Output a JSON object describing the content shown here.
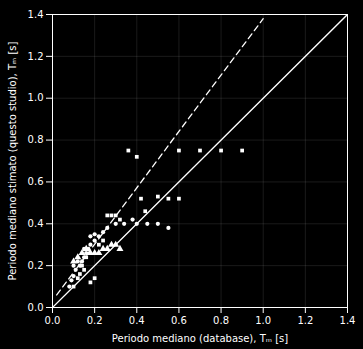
{
  "chart_data": {
    "type": "scatter",
    "xlabel": "Periodo mediano (database), Tₘ [s]",
    "ylabel": "Periodo mediano stimato (questo studio), Tₘ [s]",
    "xlim": [
      0,
      1.4
    ],
    "ylim": [
      0,
      1.4
    ],
    "xticks": [
      {
        "value": 0,
        "label": "0.0"
      },
      0.2,
      0.4,
      0.6,
      0.8,
      {
        "value": 1.0,
        "label": "1.0"
      },
      1.2,
      1.4
    ],
    "yticks": [
      {
        "value": 0,
        "label": "0.0"
      },
      0.2,
      0.4,
      0.6,
      0.8,
      {
        "value": 1.0,
        "label": "1.0"
      },
      1.2,
      1.4
    ],
    "grid": true,
    "series": [
      {
        "type": "scatter",
        "marker": "circle",
        "color": "#ffffff",
        "x": [
          0.08,
          0.09,
          0.1,
          0.1,
          0.11,
          0.12,
          0.13,
          0.14,
          0.15,
          0.15,
          0.16,
          0.17,
          0.18,
          0.18,
          0.2,
          0.2,
          0.22,
          0.24,
          0.26,
          0.3,
          0.34,
          0.38,
          0.4,
          0.45,
          0.5,
          0.55
        ],
        "values": [
          0.1,
          0.13,
          0.15,
          0.2,
          0.18,
          0.22,
          0.2,
          0.22,
          0.24,
          0.28,
          0.26,
          0.28,
          0.3,
          0.34,
          0.32,
          0.35,
          0.34,
          0.36,
          0.38,
          0.4,
          0.4,
          0.42,
          0.4,
          0.4,
          0.4,
          0.38
        ]
      },
      {
        "type": "scatter",
        "marker": "square",
        "color": "#ffffff",
        "x": [
          0.1,
          0.12,
          0.13,
          0.14,
          0.15,
          0.16,
          0.18,
          0.2,
          0.22,
          0.24,
          0.26,
          0.28,
          0.3,
          0.32,
          0.36,
          0.4,
          0.42,
          0.44,
          0.5,
          0.55,
          0.6,
          0.7,
          0.8,
          0.9,
          0.6
        ],
        "values": [
          0.1,
          0.14,
          0.16,
          0.2,
          0.18,
          0.24,
          0.12,
          0.14,
          0.3,
          0.32,
          0.44,
          0.44,
          0.44,
          0.42,
          0.75,
          0.72,
          0.52,
          0.46,
          0.53,
          0.52,
          0.52,
          0.75,
          0.75,
          0.75,
          0.75
        ]
      },
      {
        "type": "scatter",
        "marker": "triangle",
        "color": "#ffffff",
        "x": [
          0.1,
          0.12,
          0.14,
          0.16,
          0.18,
          0.2,
          0.22,
          0.24,
          0.26,
          0.28,
          0.3,
          0.32
        ],
        "values": [
          0.22,
          0.24,
          0.26,
          0.28,
          0.26,
          0.26,
          0.26,
          0.28,
          0.28,
          0.3,
          0.3,
          0.28
        ]
      },
      {
        "type": "line",
        "line_style": "solid",
        "color": "#ffffff",
        "x": [
          0,
          1.4
        ],
        "values": [
          0,
          1.4
        ]
      },
      {
        "type": "line",
        "line_style": "dashed",
        "color": "#ffffff",
        "x": [
          0.02,
          1.0
        ],
        "values": [
          0.06,
          1.38
        ]
      }
    ]
  }
}
